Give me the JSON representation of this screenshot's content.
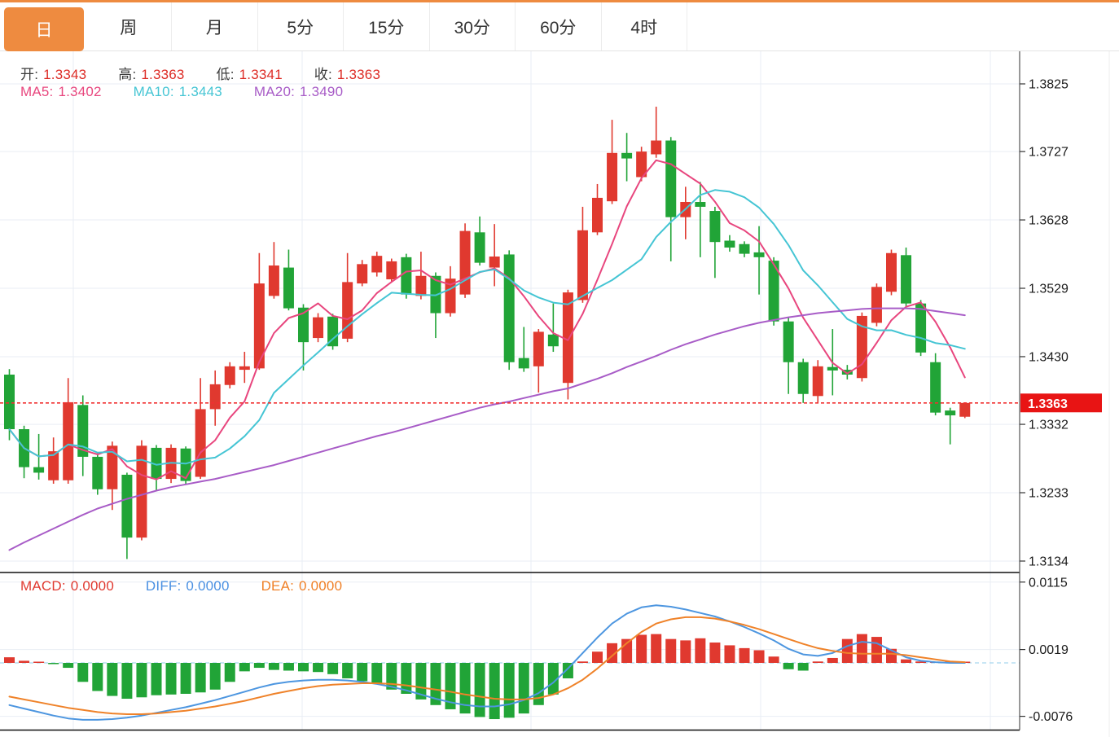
{
  "tabs": [
    {
      "label": "日",
      "active": true
    },
    {
      "label": "周",
      "active": false
    },
    {
      "label": "月",
      "active": false
    },
    {
      "label": "5分",
      "active": false
    },
    {
      "label": "15分",
      "active": false
    },
    {
      "label": "30分",
      "active": false
    },
    {
      "label": "60分",
      "active": false
    },
    {
      "label": "4时",
      "active": false
    }
  ],
  "legend": {
    "ohlc": {
      "open_label": "开:",
      "open": "1.3343",
      "high_label": "高:",
      "high": "1.3363",
      "low_label": "低:",
      "low": "1.3341",
      "close_label": "收:",
      "close": "1.3363"
    },
    "ma": {
      "ma5_label": "MA5:",
      "ma5": "1.3402",
      "ma10_label": "MA10:",
      "ma10": "1.3443",
      "ma20_label": "MA20:",
      "ma20": "1.3490"
    },
    "macd": {
      "macd_label": "MACD:",
      "macd": "0.0000",
      "diff_label": "DIFF:",
      "diff": "0.0000",
      "dea_label": "DEA:",
      "dea": "0.0000"
    }
  },
  "colors": {
    "accent_orange": "#ee8b40",
    "up_red": "#e0392f",
    "down_green": "#21a437",
    "ma5_pink": "#e8467e",
    "ma10_cyan": "#45c5d4",
    "ma20_purple": "#a85cc7",
    "diff_blue": "#4d96e0",
    "dea_orange": "#ef8229",
    "price_tag_red": "#e81414",
    "dotted_line_red": "#f03030",
    "grid": "#e9eef4",
    "axis_line": "#555555",
    "label_dark": "#1a1a1a",
    "zero_dash_cyan": "#a8d8ef"
  },
  "chart_data": {
    "type": "candlestick",
    "title": "",
    "legend_position": "top-left",
    "grid": true,
    "panels": [
      "price+MA",
      "MACD"
    ],
    "price_axis": {
      "ticks": [
        "1.3825",
        "1.3727",
        "1.3628",
        "1.3529",
        "1.3430",
        "1.3332",
        "1.3233",
        "1.3134"
      ],
      "visible_range": [
        1.3118,
        1.3873
      ],
      "current_price": "1.3363"
    },
    "macd_axis": {
      "ticks": [
        "0.0115",
        "0.0019",
        "-0.0076"
      ],
      "visible_range": [
        -0.0097,
        0.0127
      ]
    },
    "candles_ohlc": [
      [
        1.3404,
        1.3412,
        1.3309,
        1.3325
      ],
      [
        1.3325,
        1.333,
        1.3254,
        1.327
      ],
      [
        1.327,
        1.3318,
        1.3252,
        1.3262
      ],
      [
        1.3251,
        1.3313,
        1.3246,
        1.3293
      ],
      [
        1.3251,
        1.3399,
        1.3246,
        1.3364
      ],
      [
        1.336,
        1.3374,
        1.3257,
        1.3285
      ],
      [
        1.3285,
        1.329,
        1.323,
        1.3238
      ],
      [
        1.3238,
        1.3307,
        1.3208,
        1.3301
      ],
      [
        1.3259,
        1.3262,
        1.3137,
        1.3168
      ],
      [
        1.3168,
        1.3309,
        1.3164,
        1.3301
      ],
      [
        1.3298,
        1.3302,
        1.3236,
        1.3253
      ],
      [
        1.3253,
        1.3303,
        1.3247,
        1.3298
      ],
      [
        1.3297,
        1.33,
        1.3245,
        1.325
      ],
      [
        1.3256,
        1.3399,
        1.3253,
        1.3354
      ],
      [
        1.3354,
        1.341,
        1.333,
        1.339
      ],
      [
        1.3389,
        1.3422,
        1.3384,
        1.3416
      ],
      [
        1.3411,
        1.3437,
        1.3392,
        1.3416
      ],
      [
        1.3413,
        1.358,
        1.3411,
        1.3536
      ],
      [
        1.3518,
        1.3596,
        1.3514,
        1.3562
      ],
      [
        1.3559,
        1.3585,
        1.3497,
        1.35
      ],
      [
        1.3501,
        1.3506,
        1.341,
        1.3451
      ],
      [
        1.3457,
        1.3493,
        1.3451,
        1.3487
      ],
      [
        1.3488,
        1.3492,
        1.344,
        1.3445
      ],
      [
        1.3456,
        1.358,
        1.3451,
        1.3538
      ],
      [
        1.3536,
        1.357,
        1.3532,
        1.3564
      ],
      [
        1.3552,
        1.3582,
        1.3546,
        1.3576
      ],
      [
        1.3542,
        1.3572,
        1.3538,
        1.3568
      ],
      [
        1.3574,
        1.3579,
        1.3514,
        1.352
      ],
      [
        1.3518,
        1.3582,
        1.3513,
        1.3547
      ],
      [
        1.3547,
        1.3552,
        1.3457,
        1.3493
      ],
      [
        1.3493,
        1.3561,
        1.3488,
        1.3543
      ],
      [
        1.352,
        1.3623,
        1.3515,
        1.3612
      ],
      [
        1.361,
        1.3633,
        1.3562,
        1.3566
      ],
      [
        1.3559,
        1.3622,
        1.3532,
        1.3575
      ],
      [
        1.3578,
        1.3584,
        1.3411,
        1.3422
      ],
      [
        1.3428,
        1.3473,
        1.3408,
        1.3413
      ],
      [
        1.3416,
        1.347,
        1.3378,
        1.3466
      ],
      [
        1.3462,
        1.3507,
        1.3437,
        1.3445
      ],
      [
        1.3392,
        1.3527,
        1.3368,
        1.3523
      ],
      [
        1.3512,
        1.3647,
        1.3508,
        1.3613
      ],
      [
        1.361,
        1.368,
        1.3606,
        1.366
      ],
      [
        1.3655,
        1.3773,
        1.3651,
        1.3725
      ],
      [
        1.3725,
        1.3754,
        1.3684,
        1.3717
      ],
      [
        1.369,
        1.3734,
        1.3684,
        1.3727
      ],
      [
        1.3723,
        1.3792,
        1.3718,
        1.3743
      ],
      [
        1.3743,
        1.3748,
        1.3568,
        1.3632
      ],
      [
        1.3632,
        1.3676,
        1.36,
        1.3654
      ],
      [
        1.3654,
        1.3683,
        1.3574,
        1.3647
      ],
      [
        1.3641,
        1.3647,
        1.3544,
        1.3596
      ],
      [
        1.3598,
        1.3606,
        1.3582,
        1.3588
      ],
      [
        1.3593,
        1.3597,
        1.3574,
        1.3579
      ],
      [
        1.3581,
        1.3619,
        1.352,
        1.3574
      ],
      [
        1.3569,
        1.3574,
        1.3475,
        1.3481
      ],
      [
        1.3481,
        1.3486,
        1.3376,
        1.3422
      ],
      [
        1.3422,
        1.3427,
        1.3363,
        1.3376
      ],
      [
        1.3373,
        1.3425,
        1.3363,
        1.3416
      ],
      [
        1.3415,
        1.347,
        1.3374,
        1.341
      ],
      [
        1.3411,
        1.3418,
        1.3397,
        1.3404
      ],
      [
        1.3399,
        1.3494,
        1.3394,
        1.3489
      ],
      [
        1.3479,
        1.3536,
        1.3474,
        1.3531
      ],
      [
        1.3524,
        1.3585,
        1.3519,
        1.358
      ],
      [
        1.3577,
        1.3588,
        1.3502,
        1.3507
      ],
      [
        1.3507,
        1.3512,
        1.3431,
        1.3436
      ],
      [
        1.3422,
        1.3435,
        1.3345,
        1.3349
      ],
      [
        1.3352,
        1.3356,
        1.3303,
        1.3345
      ],
      [
        1.3343,
        1.3363,
        1.3341,
        1.3363
      ]
    ],
    "ma20_series": [
      1.315,
      1.3161,
      1.3171,
      1.3181,
      1.3191,
      1.3201,
      1.321,
      1.3217,
      1.3224,
      1.323,
      1.3236,
      1.3241,
      1.3245,
      1.3249,
      1.3253,
      1.3258,
      1.3263,
      1.3268,
      1.3273,
      1.3279,
      1.3285,
      1.3291,
      1.3297,
      1.3303,
      1.3309,
      1.3315,
      1.332,
      1.3326,
      1.3332,
      1.3338,
      1.3344,
      1.335,
      1.3356,
      1.3361,
      1.3365,
      1.337,
      1.3375,
      1.338,
      1.3384,
      1.3391,
      1.3398,
      1.3406,
      1.3415,
      1.3423,
      1.3431,
      1.344,
      1.3448,
      1.3455,
      1.3462,
      1.3468,
      1.3474,
      1.3479,
      1.3483,
      1.3487,
      1.349,
      1.3493,
      1.3495,
      1.3497,
      1.3499,
      1.35,
      1.35,
      1.35,
      1.3499,
      1.3496,
      1.3493,
      1.349
    ],
    "macd_hist": [
      0.0008,
      0.0003,
      0.0,
      -0.0001,
      -0.0007,
      -0.0027,
      -0.004,
      -0.0047,
      -0.0051,
      -0.0049,
      -0.0046,
      -0.0045,
      -0.0044,
      -0.0042,
      -0.0038,
      -0.0027,
      -0.0012,
      -0.0007,
      -0.001,
      -0.0011,
      -0.0012,
      -0.0013,
      -0.0016,
      -0.0022,
      -0.0026,
      -0.003,
      -0.0038,
      -0.0044,
      -0.0052,
      -0.006,
      -0.0066,
      -0.0072,
      -0.0077,
      -0.008,
      -0.0078,
      -0.0072,
      -0.006,
      -0.0045,
      -0.0022,
      0.0002,
      0.0016,
      0.0028,
      0.0034,
      0.004,
      0.0041,
      0.0034,
      0.0032,
      0.0035,
      0.0029,
      0.0025,
      0.0021,
      0.0018,
      0.0009,
      -0.0009,
      -0.0011,
      0.0002,
      0.0007,
      0.0034,
      0.0041,
      0.0037,
      0.002,
      0.0005,
      0.0002,
      0.0001,
      0.0001,
      0.0
    ],
    "diff_series": [
      -0.006,
      -0.0065,
      -0.007,
      -0.0075,
      -0.0079,
      -0.0081,
      -0.0081,
      -0.008,
      -0.0078,
      -0.0075,
      -0.0071,
      -0.0067,
      -0.0063,
      -0.0058,
      -0.0053,
      -0.0047,
      -0.0041,
      -0.0035,
      -0.003,
      -0.0027,
      -0.0025,
      -0.0024,
      -0.0024,
      -0.0025,
      -0.0027,
      -0.003,
      -0.0034,
      -0.0039,
      -0.0045,
      -0.0051,
      -0.0056,
      -0.006,
      -0.0062,
      -0.0062,
      -0.0059,
      -0.0053,
      -0.0043,
      -0.0028,
      -0.0008,
      0.0014,
      0.0036,
      0.0056,
      0.007,
      0.0079,
      0.0082,
      0.008,
      0.0076,
      0.0071,
      0.0066,
      0.0059,
      0.0051,
      0.0042,
      0.0032,
      0.002,
      0.0012,
      0.001,
      0.0014,
      0.0024,
      0.003,
      0.0028,
      0.0018,
      0.0008,
      0.0003,
      0.0001,
      0.0,
      0.0
    ],
    "dea_series": [
      -0.0048,
      -0.0052,
      -0.0056,
      -0.006,
      -0.0064,
      -0.0067,
      -0.007,
      -0.0072,
      -0.0073,
      -0.0073,
      -0.0072,
      -0.007,
      -0.0068,
      -0.0065,
      -0.0062,
      -0.0058,
      -0.0054,
      -0.0049,
      -0.0044,
      -0.004,
      -0.0036,
      -0.0033,
      -0.0031,
      -0.003,
      -0.0029,
      -0.0029,
      -0.003,
      -0.0032,
      -0.0035,
      -0.0038,
      -0.0041,
      -0.0045,
      -0.0048,
      -0.0051,
      -0.0052,
      -0.0052,
      -0.005,
      -0.0045,
      -0.0036,
      -0.0024,
      -0.0008,
      0.001,
      0.0028,
      0.0044,
      0.0056,
      0.0062,
      0.0065,
      0.0065,
      0.0063,
      0.0059,
      0.0054,
      0.0048,
      0.0041,
      0.0034,
      0.0027,
      0.0021,
      0.0017,
      0.0014,
      0.0013,
      0.0013,
      0.0013,
      0.0011,
      0.0008,
      0.0005,
      0.0002,
      0.0001
    ]
  }
}
